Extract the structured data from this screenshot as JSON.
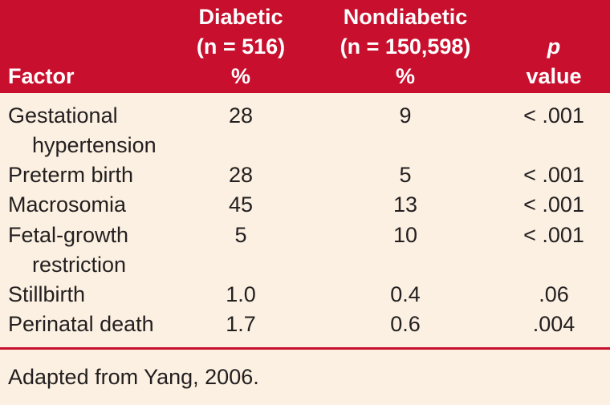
{
  "header": {
    "factor": "Factor",
    "diabetic": [
      "Diabetic",
      "(n = 516)",
      "%"
    ],
    "nondiabetic": [
      "Nondiabetic",
      "(n = 150,598)",
      "%"
    ],
    "p_value": [
      "p",
      "value"
    ]
  },
  "rows": [
    {
      "factor": [
        "Gestational",
        "hypertension"
      ],
      "diabetic": "28",
      "nondiabetic": "9",
      "p": "< .001"
    },
    {
      "factor": [
        "Preterm birth"
      ],
      "diabetic": "28",
      "nondiabetic": "5",
      "p": "< .001"
    },
    {
      "factor": [
        "Macrosomia"
      ],
      "diabetic": "45",
      "nondiabetic": "13",
      "p": "< .001"
    },
    {
      "factor": [
        "Fetal-growth",
        "restriction"
      ],
      "diabetic": "5",
      "nondiabetic": "10",
      "p": "< .001"
    },
    {
      "factor": [
        "Stillbirth"
      ],
      "diabetic": "1.0",
      "nondiabetic": "0.4",
      "p": ".06"
    },
    {
      "factor": [
        "Perinatal death"
      ],
      "diabetic": "1.7",
      "nondiabetic": "0.6",
      "p": ".004"
    }
  ],
  "footnote": "Adapted from Yang, 2006.",
  "colors": {
    "header_bg": "#c8102e",
    "body_bg": "#fbf0e1",
    "divider": "#c8102e"
  }
}
